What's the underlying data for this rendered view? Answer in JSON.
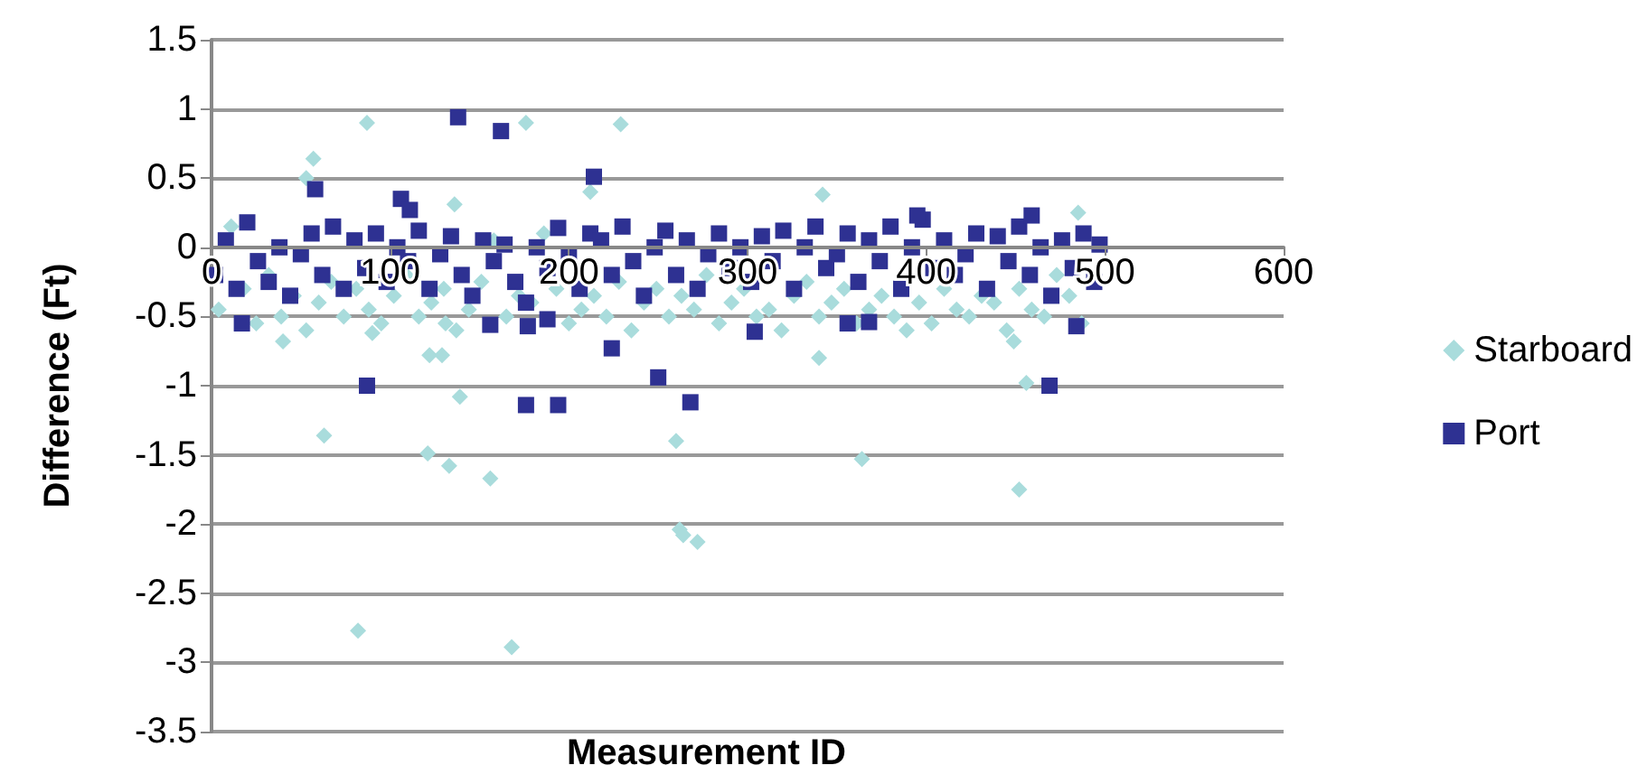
{
  "chart_data": {
    "type": "scatter",
    "xlabel": "Measurement ID",
    "ylabel": "Difference (Ft)",
    "xlim": [
      0,
      600
    ],
    "xticks": [
      0,
      100,
      200,
      300,
      400,
      500,
      600
    ],
    "ylim": [
      -3.5,
      1.5
    ],
    "yticks": [
      -3.5,
      -3,
      -2.5,
      -2,
      -1.5,
      -1,
      -0.5,
      0,
      0.5,
      1,
      1.5
    ],
    "grid": "y",
    "legend": "right",
    "series": [
      {
        "name": "Starboard",
        "color": "#a9dcdc",
        "marker": "diamond",
        "x": [
          4,
          11,
          18,
          25,
          32,
          39,
          46,
          53,
          60,
          67,
          74,
          81,
          88,
          95,
          102,
          109,
          116,
          123,
          130,
          137,
          144,
          151,
          158,
          165,
          172,
          179,
          186,
          193,
          200,
          207,
          214,
          221,
          228,
          235,
          242,
          249,
          256,
          263,
          270,
          277,
          284,
          291,
          298,
          305,
          312,
          319,
          326,
          333,
          340,
          347,
          354,
          361,
          368,
          375,
          382,
          389,
          396,
          403,
          410,
          417,
          424,
          431,
          438,
          445,
          452,
          459,
          466,
          473,
          480,
          487,
          87,
          176,
          229,
          57,
          53,
          136,
          212,
          342,
          485,
          63,
          121,
          133,
          139,
          156,
          82,
          168,
          260,
          262,
          264,
          272,
          364,
          340,
          449,
          456,
          452,
          40,
          122,
          129,
          90,
          131
        ],
        "values": [
          -0.45,
          0.15,
          -0.3,
          -0.55,
          -0.2,
          -0.5,
          -0.35,
          -0.6,
          -0.4,
          -0.25,
          -0.5,
          -0.3,
          -0.45,
          -0.55,
          -0.35,
          -0.2,
          -0.5,
          -0.4,
          -0.3,
          -0.6,
          -0.45,
          -0.25,
          0.05,
          -0.5,
          -0.35,
          -0.4,
          0.1,
          -0.3,
          -0.55,
          -0.45,
          -0.35,
          -0.5,
          -0.25,
          -0.6,
          -0.4,
          -0.3,
          -0.5,
          -0.35,
          -0.45,
          -0.2,
          -0.55,
          -0.4,
          -0.3,
          -0.5,
          -0.45,
          -0.6,
          -0.35,
          -0.25,
          -0.5,
          -0.4,
          -0.3,
          -0.55,
          -0.45,
          -0.35,
          -0.5,
          -0.6,
          -0.4,
          -0.55,
          -0.3,
          -0.45,
          -0.5,
          -0.35,
          -0.4,
          -0.6,
          -0.3,
          -0.45,
          -0.5,
          -0.2,
          -0.35,
          -0.55,
          0.9,
          0.9,
          0.89,
          0.64,
          0.5,
          0.31,
          0.4,
          0.38,
          0.25,
          -1.36,
          -1.49,
          -1.58,
          -1.08,
          -1.67,
          -2.77,
          -2.89,
          -1.4,
          -2.04,
          -2.08,
          -2.13,
          -1.53,
          -0.8,
          -0.68,
          -0.98,
          -1.75,
          -0.68,
          -0.78,
          -0.78,
          -0.62,
          -0.55
        ]
      },
      {
        "name": "Port",
        "color": "#2e3192",
        "marker": "square",
        "x": [
          2,
          8,
          14,
          20,
          26,
          32,
          38,
          44,
          50,
          56,
          62,
          68,
          74,
          80,
          86,
          92,
          98,
          104,
          110,
          116,
          122,
          128,
          134,
          140,
          146,
          152,
          158,
          164,
          170,
          176,
          182,
          188,
          194,
          200,
          206,
          212,
          218,
          224,
          230,
          236,
          242,
          248,
          254,
          260,
          266,
          272,
          278,
          284,
          290,
          296,
          302,
          308,
          314,
          320,
          326,
          332,
          338,
          344,
          350,
          356,
          362,
          368,
          374,
          380,
          386,
          392,
          398,
          404,
          410,
          416,
          422,
          428,
          434,
          440,
          446,
          452,
          458,
          464,
          470,
          476,
          482,
          488,
          494,
          497,
          138,
          162,
          214,
          58,
          106,
          111,
          87,
          176,
          194,
          250,
          268,
          469,
          17,
          224,
          156,
          177,
          188,
          304,
          356,
          368,
          484,
          459,
          395
        ],
        "values": [
          -0.2,
          0.05,
          -0.3,
          0.18,
          -0.1,
          -0.25,
          0,
          -0.35,
          -0.05,
          0.1,
          -0.2,
          0.15,
          -0.3,
          0.05,
          -0.15,
          0.1,
          -0.25,
          0,
          -0.1,
          0.12,
          -0.3,
          -0.05,
          0.08,
          -0.2,
          -0.35,
          0.05,
          -0.1,
          0.02,
          -0.25,
          -0.4,
          0,
          -0.15,
          0.14,
          -0.05,
          -0.3,
          0.1,
          0.05,
          -0.2,
          0.15,
          -0.1,
          -0.35,
          0,
          0.12,
          -0.2,
          0.05,
          -0.3,
          -0.05,
          0.1,
          -0.15,
          0,
          -0.25,
          0.08,
          -0.1,
          0.12,
          -0.3,
          0,
          0.15,
          -0.15,
          -0.05,
          0.1,
          -0.25,
          0.05,
          -0.1,
          0.15,
          -0.3,
          0,
          0.2,
          -0.15,
          0.05,
          -0.2,
          -0.05,
          0.1,
          -0.3,
          0.08,
          -0.1,
          0.15,
          -0.2,
          0,
          -0.35,
          0.05,
          -0.15,
          0.1,
          -0.25,
          0.02,
          0.94,
          0.84,
          0.51,
          0.42,
          0.35,
          0.27,
          -1.0,
          -1.14,
          -1.14,
          -0.94,
          -1.12,
          -1.0,
          -0.55,
          -0.73,
          -0.56,
          -0.57,
          -0.52,
          -0.61,
          -0.55,
          -0.54,
          -0.57,
          0.23,
          0.23
        ]
      }
    ]
  }
}
